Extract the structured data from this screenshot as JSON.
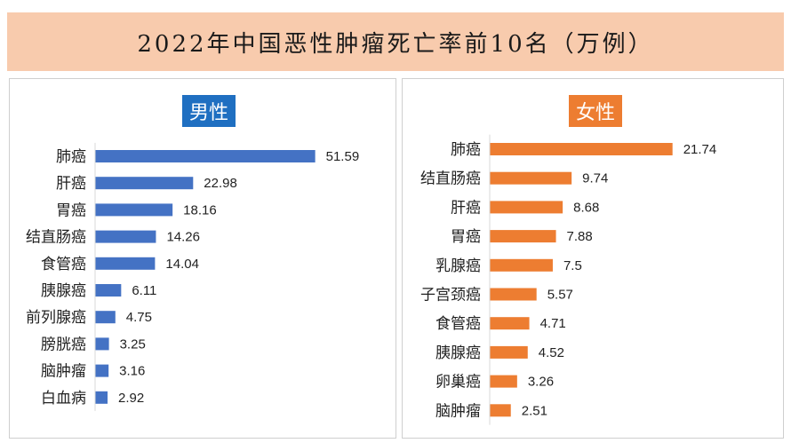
{
  "title": "2022年中国恶性肿瘤死亡率前10名（万例）",
  "chart_data": [
    {
      "type": "bar",
      "orientation": "horizontal",
      "title": "男性",
      "color": "#4472c4",
      "categories": [
        "肺癌",
        "肝癌",
        "胃癌",
        "结直肠癌",
        "食管癌",
        "胰腺癌",
        "前列腺癌",
        "膀胱癌",
        "脑肿瘤",
        "白血病"
      ],
      "values": [
        51.59,
        22.98,
        18.16,
        14.26,
        14.04,
        6.11,
        4.75,
        3.25,
        3.16,
        2.92
      ],
      "value_labels": [
        "51.59",
        "22.98",
        "18.16",
        "14.26",
        "14.04",
        "6.11",
        "4.75",
        "3.25",
        "3.16",
        "2.92"
      ],
      "xlim": [
        0,
        60
      ]
    },
    {
      "type": "bar",
      "orientation": "horizontal",
      "title": "女性",
      "color": "#ed7d31",
      "categories": [
        "肺癌",
        "结直肠癌",
        "肝癌",
        "胃癌",
        "乳腺癌",
        "子宫颈癌",
        "食管癌",
        "胰腺癌",
        "卵巢癌",
        "脑肿瘤"
      ],
      "values": [
        21.74,
        9.74,
        8.68,
        7.88,
        7.5,
        5.57,
        4.71,
        4.52,
        3.26,
        2.51
      ],
      "value_labels": [
        "21.74",
        "9.74",
        "8.68",
        "7.88",
        "7.5",
        "5.57",
        "4.71",
        "4.52",
        "3.26",
        "2.51"
      ],
      "xlim": [
        0,
        26
      ]
    }
  ]
}
